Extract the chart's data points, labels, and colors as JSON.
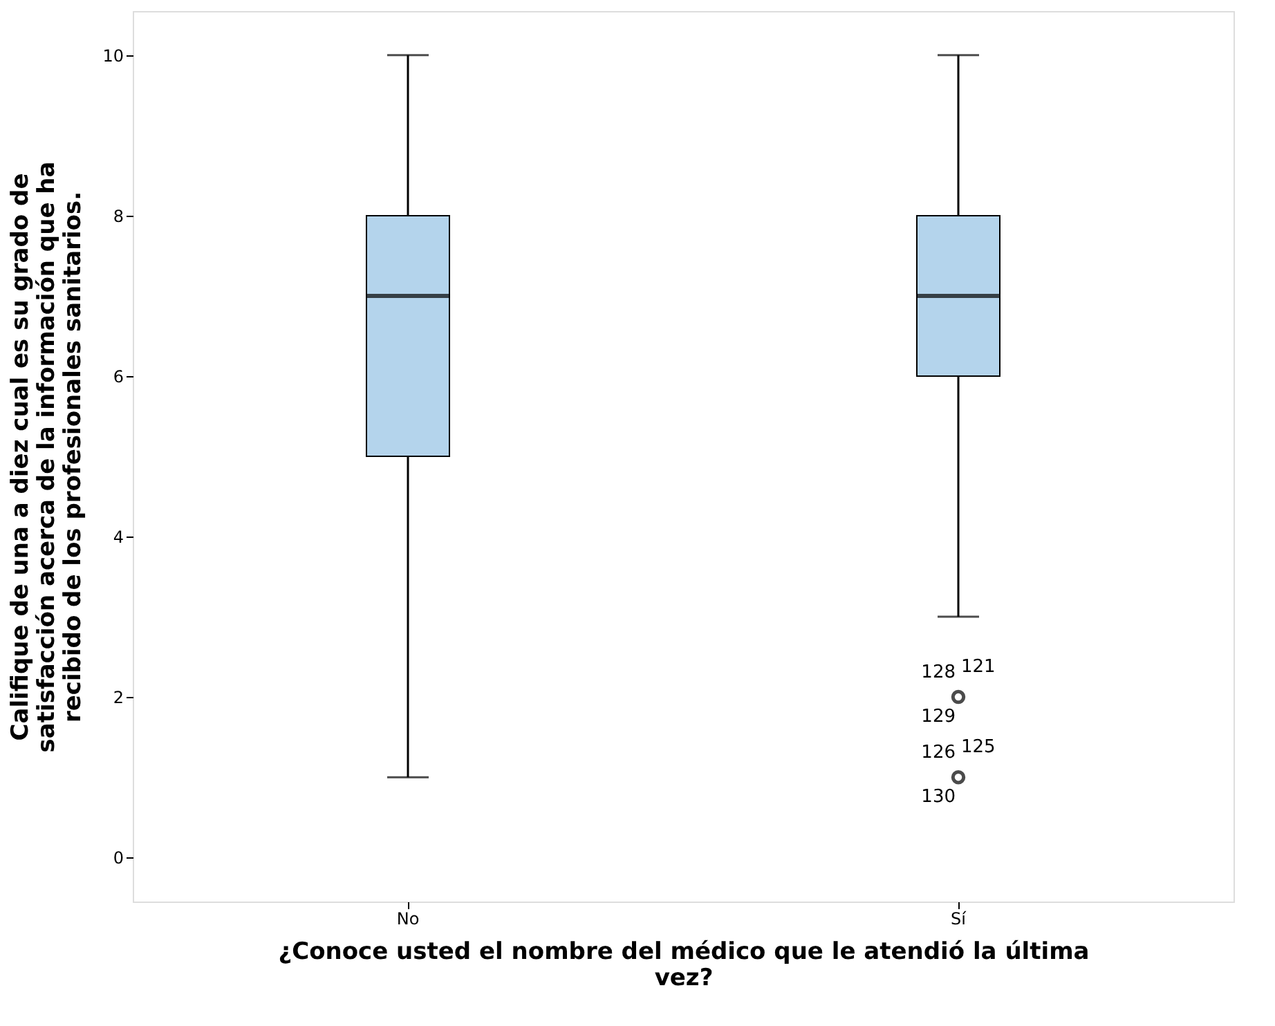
{
  "chart_data": {
    "type": "box",
    "categories": [
      "No",
      "Sí"
    ],
    "xlabel": "¿Conoce usted el nombre del médico que le atendió la última\nvez?",
    "ylabel": "Califique de una a diez cual es su grado de\nsatisfacción acerca de la información que ha\nrecibido de los profesionales sanitarios.",
    "boxes": [
      {
        "low": 1,
        "q1": 5,
        "median": 7,
        "q3": 8,
        "high": 10
      },
      {
        "low": 3,
        "q1": 6,
        "median": 7,
        "q3": 8,
        "high": 10,
        "outliers": [
          2,
          1
        ]
      }
    ],
    "color": "#b4d4ec",
    "ylim": [
      -0.55,
      10.55
    ],
    "yticks": [
      0,
      2,
      4,
      6,
      8,
      10
    ],
    "grid": false,
    "annotations": [
      "128",
      "121",
      "129",
      "126",
      "125",
      "130"
    ]
  }
}
